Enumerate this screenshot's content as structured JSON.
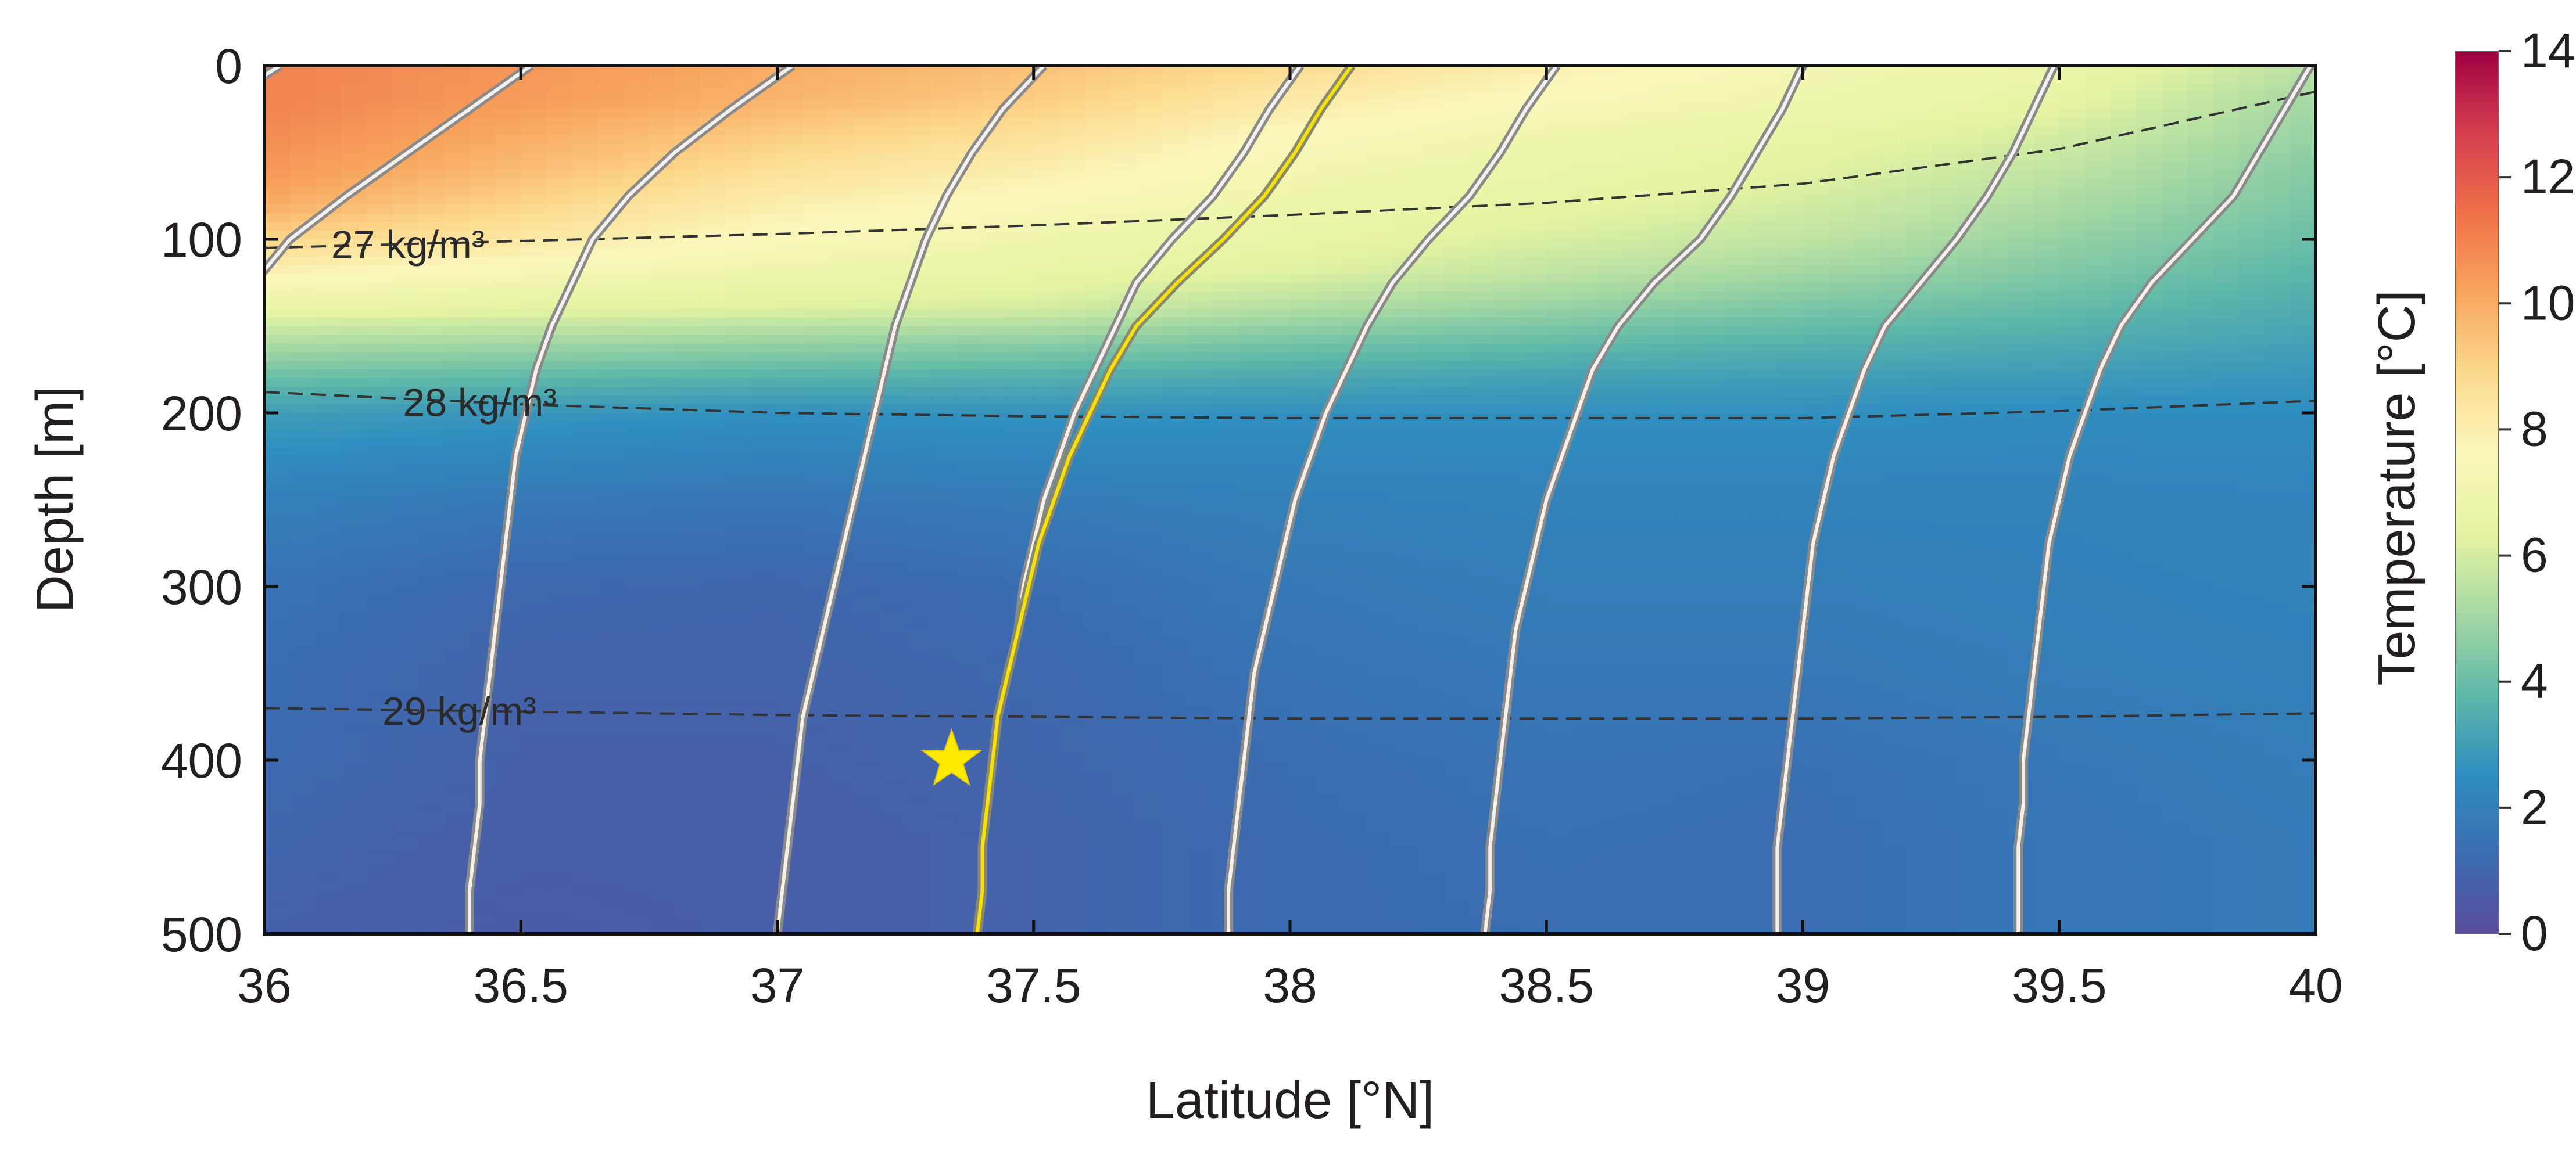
{
  "chart_data": {
    "type": "heatmap",
    "title": "",
    "xlabel": "Latitude [°N]",
    "ylabel": "Depth [m]",
    "xlim": [
      36,
      40
    ],
    "ylim": [
      500,
      0
    ],
    "x_ticks": [
      "36",
      "36.5",
      "37",
      "37.5",
      "38",
      "38.5",
      "39",
      "39.5",
      "40"
    ],
    "y_ticks": [
      "0",
      "100",
      "200",
      "300",
      "400",
      "500"
    ],
    "colorbar": {
      "label": "Temperature [°C]",
      "range": [
        0,
        14
      ],
      "ticks": [
        "0",
        "2",
        "4",
        "6",
        "8",
        "10",
        "12",
        "14"
      ],
      "colormap": "Spectral_r",
      "colors": [
        "#5a4c9e",
        "#3a6db0",
        "#2f8ec0",
        "#5fb9a8",
        "#a7d9a3",
        "#e6f4a2",
        "#fbf7bb",
        "#fcd98d",
        "#f8a45d",
        "#ee7048",
        "#d43e4f",
        "#9e0142"
      ]
    },
    "temperature_field": {
      "x": [
        36.0,
        36.5,
        37.0,
        37.5,
        38.0,
        38.5,
        39.0,
        39.5,
        40.0
      ],
      "depth": [
        0,
        20,
        40,
        60,
        80,
        100,
        120,
        140,
        160,
        180,
        200,
        250,
        300,
        350,
        400,
        450,
        500
      ],
      "values": [
        [
          11.0,
          10.5,
          10.0,
          9.5,
          8.8,
          8.0,
          7.2,
          6.8,
          5.5
        ],
        [
          11.0,
          10.4,
          9.8,
          9.2,
          8.2,
          7.5,
          7.0,
          6.5,
          5.0
        ],
        [
          10.8,
          10.0,
          9.2,
          8.6,
          7.6,
          7.0,
          6.6,
          6.0,
          4.8
        ],
        [
          10.5,
          9.6,
          8.6,
          8.0,
          7.2,
          6.7,
          6.3,
          5.6,
          4.5
        ],
        [
          10.0,
          9.0,
          8.0,
          7.5,
          6.9,
          6.5,
          6.0,
          5.2,
          4.3
        ],
        [
          9.0,
          8.3,
          7.5,
          7.0,
          6.6,
          6.1,
          5.6,
          4.8,
          4.0
        ],
        [
          7.8,
          7.3,
          6.9,
          6.6,
          6.2,
          5.6,
          5.0,
          4.4,
          3.7
        ],
        [
          6.6,
          6.4,
          6.2,
          6.0,
          5.3,
          4.8,
          4.3,
          3.9,
          3.4
        ],
        [
          5.2,
          5.0,
          4.8,
          4.6,
          4.2,
          3.9,
          3.6,
          3.4,
          3.1
        ],
        [
          4.0,
          3.8,
          3.6,
          3.5,
          3.3,
          3.1,
          3.0,
          2.9,
          2.8
        ],
        [
          3.0,
          2.8,
          2.6,
          2.7,
          2.6,
          2.6,
          2.6,
          2.5,
          2.5
        ],
        [
          2.0,
          1.7,
          1.6,
          1.8,
          2.0,
          2.1,
          2.1,
          2.1,
          2.2
        ],
        [
          1.5,
          1.1,
          1.0,
          1.3,
          1.7,
          1.9,
          1.9,
          2.0,
          2.1
        ],
        [
          1.3,
          0.9,
          0.9,
          1.1,
          1.5,
          1.7,
          1.7,
          1.9,
          2.0
        ],
        [
          1.2,
          0.8,
          0.8,
          1.0,
          1.3,
          1.5,
          1.4,
          1.7,
          1.9
        ],
        [
          1.0,
          0.7,
          0.7,
          0.9,
          1.2,
          1.4,
          1.3,
          1.6,
          1.8
        ],
        [
          0.8,
          0.6,
          0.7,
          0.9,
          1.2,
          1.3,
          1.3,
          1.6,
          1.8
        ]
      ]
    },
    "isopycnals": [
      {
        "label": "27 kg/m³",
        "x": [
          36.0,
          36.5,
          37.0,
          37.5,
          38.0,
          38.5,
          39.0,
          39.5,
          40.0
        ],
        "depth": [
          105,
          101,
          97,
          92,
          86,
          79,
          68,
          48,
          15
        ]
      },
      {
        "label": "28 kg/m³",
        "x": [
          36.0,
          36.5,
          37.0,
          37.5,
          38.0,
          38.5,
          39.0,
          39.5,
          40.0
        ],
        "depth": [
          188,
          195,
          200,
          202,
          203,
          203,
          203,
          199,
          193
        ]
      },
      {
        "label": "29 kg/m³",
        "x": [
          36.0,
          36.5,
          37.0,
          37.5,
          38.0,
          38.5,
          39.0,
          39.5,
          40.0
        ],
        "depth": [
          370,
          372,
          374,
          375,
          376,
          376,
          376,
          375,
          373
        ]
      }
    ],
    "profiles": [
      {
        "depth": [
          0,
          25,
          50,
          75,
          100,
          125,
          150,
          175,
          200,
          225,
          250
        ],
        "x": [
          36.03,
          35.9,
          35.78,
          35.68,
          35.58,
          35.48,
          35.42,
          35.37,
          35.33,
          35.3,
          35.27
        ]
      },
      {
        "depth": [
          0,
          25,
          50,
          75,
          100,
          125,
          150,
          175,
          200,
          225,
          250,
          275,
          300,
          325,
          350,
          375,
          400,
          425,
          450,
          475,
          500
        ],
        "x": [
          36.52,
          36.4,
          36.28,
          36.16,
          36.05,
          35.98,
          35.92,
          35.88,
          35.85,
          35.83,
          35.81,
          35.79,
          35.78,
          35.77,
          35.76,
          35.75,
          35.74,
          35.73,
          35.72,
          35.72,
          35.71
        ]
      },
      {
        "depth": [
          0,
          25,
          50,
          75,
          100,
          125,
          150,
          175,
          200,
          225,
          250,
          275,
          300,
          325,
          350,
          375,
          400,
          425,
          450,
          475,
          500
        ],
        "x": [
          37.03,
          36.91,
          36.8,
          36.71,
          36.64,
          36.6,
          36.56,
          36.53,
          36.51,
          36.49,
          36.48,
          36.47,
          36.46,
          36.45,
          36.44,
          36.43,
          36.42,
          36.42,
          36.41,
          36.4,
          36.4
        ]
      },
      {
        "depth": [
          0,
          25,
          50,
          75,
          100,
          125,
          150,
          175,
          200,
          225,
          250,
          275,
          300,
          325,
          350,
          375,
          400,
          425,
          450,
          475,
          500
        ],
        "x": [
          37.52,
          37.44,
          37.38,
          37.33,
          37.29,
          37.26,
          37.23,
          37.21,
          37.19,
          37.17,
          37.15,
          37.13,
          37.11,
          37.09,
          37.07,
          37.05,
          37.04,
          37.03,
          37.02,
          37.01,
          37.0
        ]
      },
      {
        "depth": [
          0,
          25,
          50,
          75,
          100,
          125,
          150,
          175,
          200,
          225,
          250,
          275,
          300,
          325,
          350,
          375,
          400,
          425,
          450,
          475,
          500
        ],
        "x": [
          38.02,
          37.96,
          37.91,
          37.85,
          37.77,
          37.7,
          37.66,
          37.62,
          37.58,
          37.55,
          37.52,
          37.5,
          37.48,
          37.47,
          37.45,
          37.43,
          37.42,
          37.41,
          37.4,
          37.4,
          37.39
        ]
      },
      {
        "depth": [
          0,
          25,
          50,
          75,
          100,
          125,
          150,
          175,
          200,
          225,
          250,
          275,
          300,
          325,
          350,
          375,
          400,
          425,
          450,
          475,
          500
        ],
        "x": [
          38.52,
          38.46,
          38.41,
          38.35,
          38.27,
          38.2,
          38.15,
          38.11,
          38.07,
          38.04,
          38.01,
          37.99,
          37.97,
          37.95,
          37.93,
          37.92,
          37.91,
          37.9,
          37.89,
          37.88,
          37.88
        ]
      },
      {
        "depth": [
          0,
          25,
          50,
          75,
          100,
          125,
          150,
          175,
          200,
          225,
          250,
          275,
          300,
          325,
          350,
          375,
          400,
          425,
          450,
          475,
          500
        ],
        "x": [
          39.0,
          38.96,
          38.91,
          38.86,
          38.8,
          38.71,
          38.64,
          38.59,
          38.56,
          38.53,
          38.5,
          38.48,
          38.46,
          38.44,
          38.43,
          38.42,
          38.41,
          38.4,
          38.39,
          38.39,
          38.38
        ]
      },
      {
        "depth": [
          0,
          25,
          50,
          75,
          100,
          125,
          150,
          175,
          200,
          225,
          250,
          275,
          300,
          325,
          350,
          375,
          400,
          425,
          450,
          475,
          500
        ],
        "x": [
          39.49,
          39.45,
          39.41,
          39.36,
          39.3,
          39.23,
          39.16,
          39.12,
          39.09,
          39.06,
          39.04,
          39.02,
          39.01,
          39.0,
          38.99,
          38.98,
          38.97,
          38.96,
          38.95,
          38.95,
          38.95
        ]
      },
      {
        "depth": [
          0,
          25,
          50,
          75,
          100,
          125,
          150,
          175,
          200,
          225,
          250,
          275,
          300,
          325,
          350,
          375,
          400,
          425,
          450,
          475,
          500
        ],
        "x": [
          39.99,
          39.94,
          39.89,
          39.84,
          39.76,
          39.68,
          39.62,
          39.58,
          39.55,
          39.52,
          39.5,
          39.48,
          39.47,
          39.46,
          39.45,
          39.44,
          39.43,
          39.43,
          39.42,
          39.42,
          39.42
        ]
      }
    ],
    "highlighted_profile": {
      "color": "#f5e10d",
      "depth": [
        0,
        25,
        50,
        75,
        100,
        125,
        150,
        175,
        200,
        225,
        250,
        275,
        300,
        325,
        350,
        375,
        400,
        425,
        450,
        475,
        500
      ],
      "x": [
        38.12,
        38.06,
        38.01,
        37.95,
        37.87,
        37.78,
        37.7,
        37.65,
        37.61,
        37.57,
        37.54,
        37.51,
        37.49,
        37.47,
        37.45,
        37.43,
        37.42,
        37.41,
        37.4,
        37.4,
        37.39
      ]
    },
    "star": {
      "x": 37.34,
      "depth": 400,
      "color": "#ffeb00"
    }
  }
}
